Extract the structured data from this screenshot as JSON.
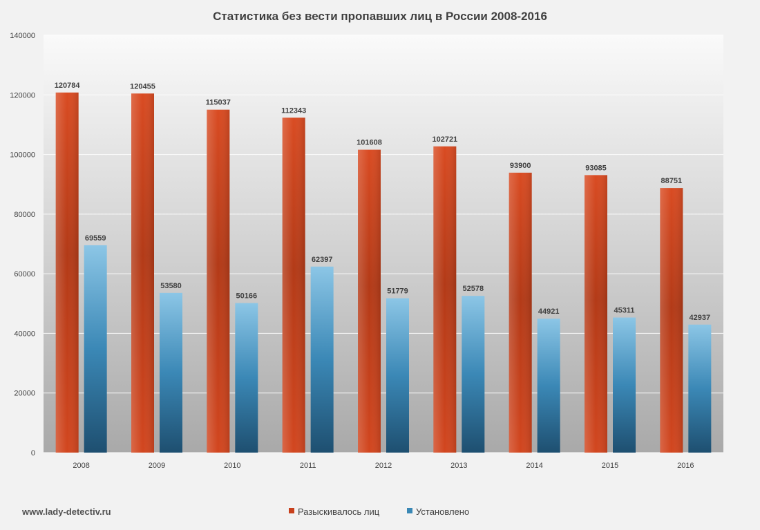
{
  "chart_data": {
    "type": "bar",
    "title": "Статистика  без вести пропавших лиц в России 2008-2016",
    "categories": [
      "2008",
      "2009",
      "2010",
      "2011",
      "2012",
      "2013",
      "2014",
      "2015",
      "2016"
    ],
    "series": [
      {
        "name": "Разыскивалось лиц",
        "color": "#c8401c",
        "values": [
          120784,
          120455,
          115037,
          112343,
          101608,
          102721,
          93900,
          93085,
          88751
        ]
      },
      {
        "name": "Установлено",
        "color": "#3a88b5",
        "values": [
          69559,
          53580,
          50166,
          62397,
          51779,
          52578,
          44921,
          45311,
          42937
        ]
      }
    ],
    "ylim": [
      0,
      140000
    ],
    "yticks": [
      0,
      20000,
      40000,
      60000,
      80000,
      100000,
      120000,
      140000
    ],
    "xlabel": "",
    "ylabel": "",
    "grid": true,
    "legend_position": "bottom-center",
    "data_labels": true
  },
  "watermark": "www.lady-detectiv.ru"
}
